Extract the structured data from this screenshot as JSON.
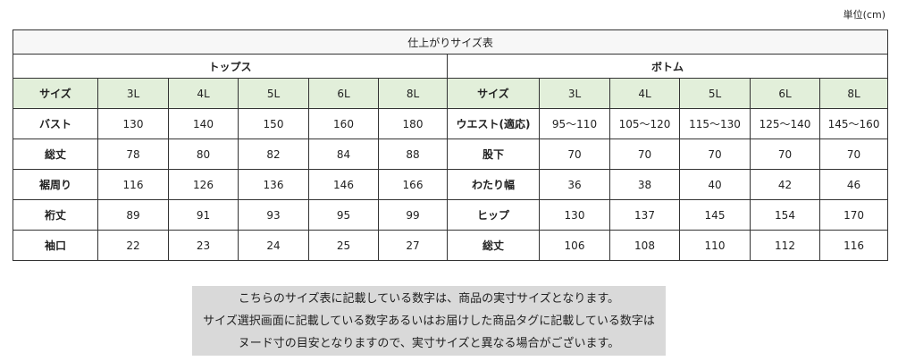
{
  "unit": "単位(cm)",
  "table": {
    "title": "仕上がりサイズ表",
    "tops": {
      "name": "トップス",
      "header": [
        "サイズ",
        "3L",
        "4L",
        "5L",
        "6L",
        "8L"
      ],
      "rows": [
        [
          "バスト",
          130,
          140,
          150,
          160,
          180
        ],
        [
          "総丈",
          78,
          80,
          82,
          84,
          88
        ],
        [
          "裾周り",
          116,
          126,
          136,
          146,
          166
        ],
        [
          "裄丈",
          89,
          91,
          93,
          95,
          99
        ],
        [
          "袖口",
          22,
          23,
          24,
          25,
          27
        ]
      ]
    },
    "bottoms": {
      "name": "ボトム",
      "header": [
        "サイズ",
        "3L",
        "4L",
        "5L",
        "6L",
        "8L"
      ],
      "rows": [
        [
          "ウエスト(適応)",
          "95～110",
          "105～120",
          "115～130",
          "125～140",
          "145～160"
        ],
        [
          "股下",
          70,
          70,
          70,
          70,
          70
        ],
        [
          "わたり幅",
          36,
          38,
          40,
          42,
          46
        ],
        [
          "ヒップ",
          130,
          137,
          145,
          154,
          170
        ],
        [
          "総丈",
          106,
          108,
          110,
          112,
          116
        ]
      ]
    }
  },
  "note": {
    "lines": [
      "こちらのサイズ表に記載している数字は、商品の実寸サイズとなります。",
      "サイズ選択画面に記載している数字あるいはお届けした商品タグに記載している数字は",
      "ヌード寸の目安となりますので、実寸サイズと異なる場合がございます。"
    ]
  }
}
